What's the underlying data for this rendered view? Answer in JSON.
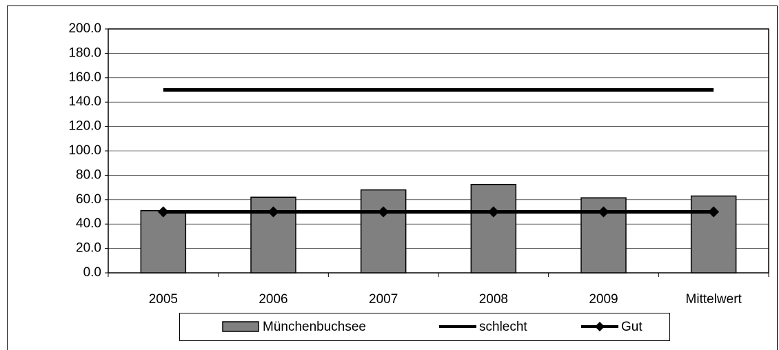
{
  "chart_data": {
    "type": "bar",
    "categories": [
      "2005",
      "2006",
      "2007",
      "2008",
      "2009",
      "Mittelwert"
    ],
    "series": [
      {
        "name": "Münchenbuchsee",
        "color": "#808080",
        "values": [
          51,
          62,
          68,
          72.5,
          61.5,
          63
        ]
      },
      {
        "name": "schlecht",
        "color": "#000000",
        "type": "line",
        "values": [
          150,
          150,
          150,
          150,
          150,
          150
        ]
      },
      {
        "name": "Gut",
        "color": "#000000",
        "type": "line",
        "marker": "diamond",
        "values": [
          50,
          50,
          50,
          50,
          50,
          50
        ]
      }
    ],
    "ylim": [
      0,
      200
    ],
    "yticks": [
      {
        "value": 0,
        "label": "0.0"
      },
      {
        "value": 20,
        "label": "20.0"
      },
      {
        "value": 40,
        "label": "40.0"
      },
      {
        "value": 60,
        "label": "60.0"
      },
      {
        "value": 80,
        "label": "80.0"
      },
      {
        "value": 100,
        "label": "100.0"
      },
      {
        "value": 120,
        "label": "120.0"
      },
      {
        "value": 140,
        "label": "140.0"
      },
      {
        "value": 160,
        "label": "160.0"
      },
      {
        "value": 180,
        "label": "180.0"
      },
      {
        "value": 200,
        "label": "200.0"
      }
    ],
    "grid": true,
    "legend": "bottom"
  }
}
